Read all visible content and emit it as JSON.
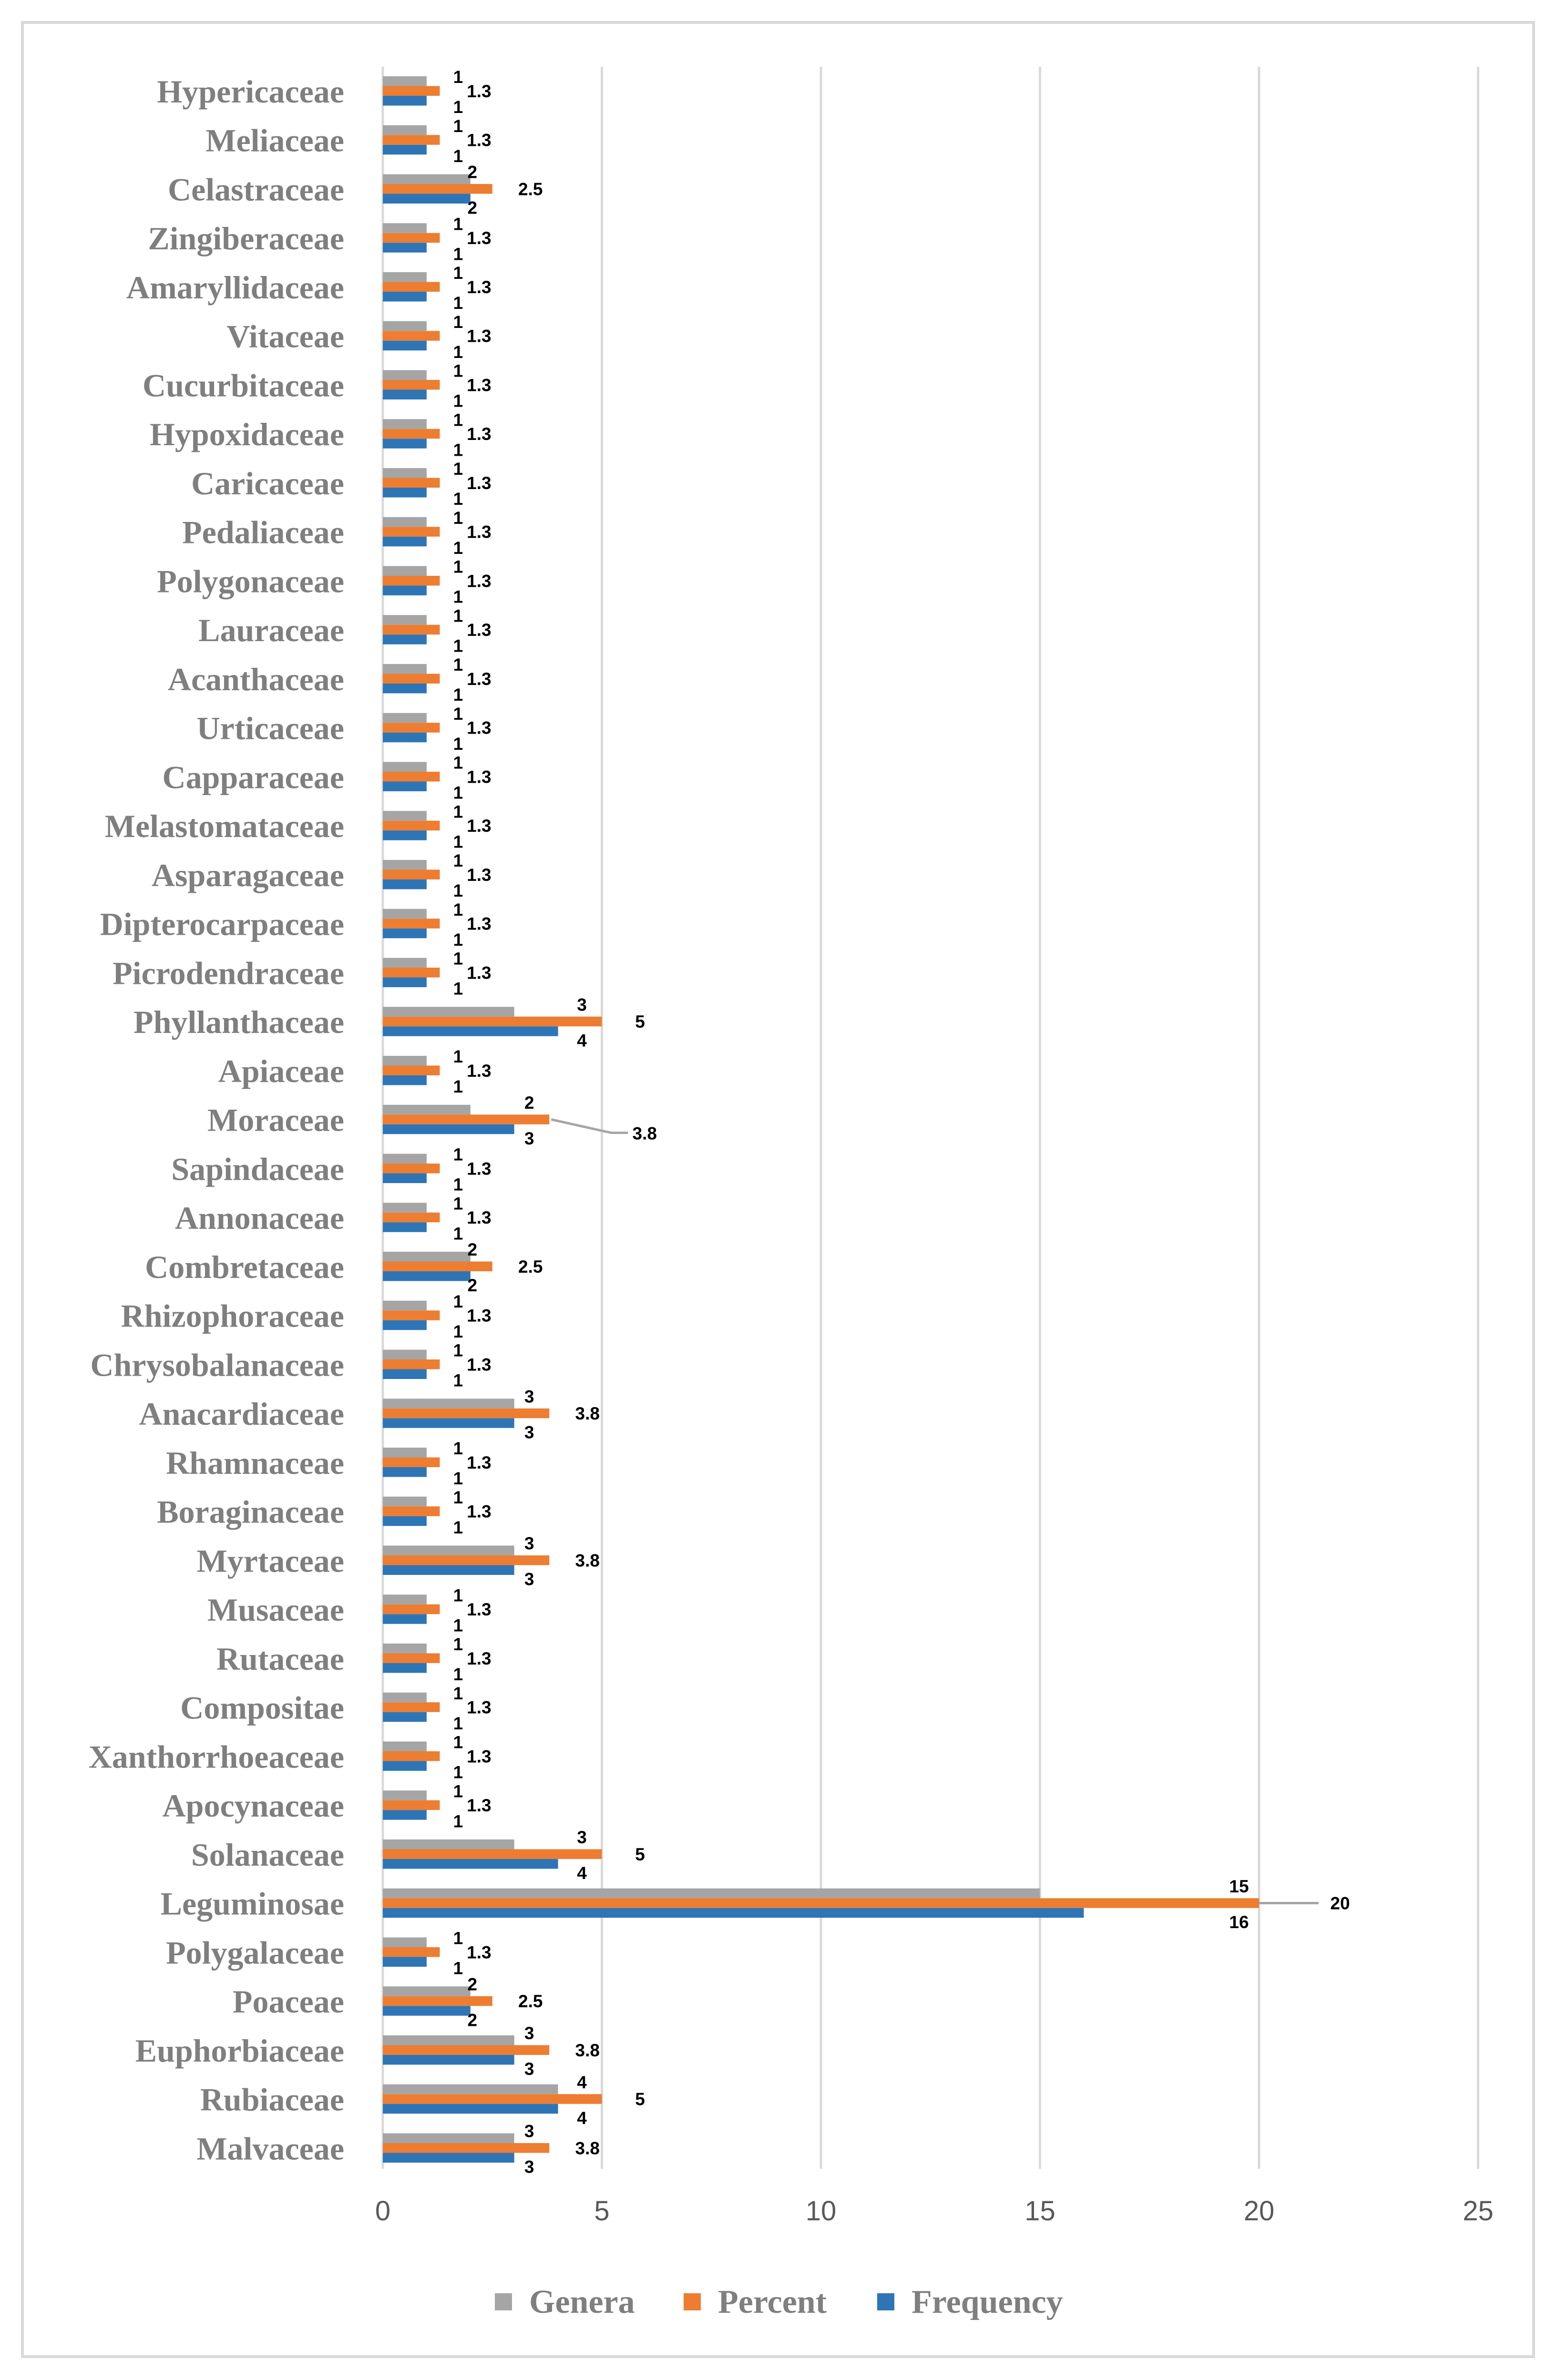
{
  "chart_data": {
    "type": "bar",
    "orientation": "horizontal",
    "title": "",
    "xlabel": "",
    "ylabel": "",
    "xlim": [
      0,
      25
    ],
    "xticks": [
      0,
      5,
      10,
      15,
      20,
      25
    ],
    "grid": "vertical",
    "legend_position": "bottom",
    "categories": [
      "Malvaceae",
      "Rubiaceae",
      "Euphorbiaceae",
      "Poaceae",
      "Polygalaceae",
      "Leguminosae",
      "Solanaceae",
      "Apocynaceae",
      "Xanthorrhoeaceae",
      "Compositae",
      "Rutaceae",
      "Musaceae",
      "Myrtaceae",
      "Boraginaceae",
      "Rhamnaceae",
      "Anacardiaceae",
      "Chrysobalanaceae",
      "Rhizophoraceae",
      "Combretaceae",
      "Annonaceae",
      "Sapindaceae",
      "Moraceae",
      "Apiaceae",
      "Phyllanthaceae",
      "Picrodendraceae",
      "Dipterocarpaceae",
      "Asparagaceae",
      "Melastomataceae",
      "Capparaceae",
      "Urticaceae",
      "Acanthaceae",
      "Lauraceae",
      "Polygonaceae",
      "Pedaliaceae",
      "Caricaceae",
      "Hypoxidaceae",
      "Cucurbitaceae",
      "Vitaceae",
      "Amaryllidaceae",
      "Zingiberaceae",
      "Celastraceae",
      "Meliaceae",
      "Hypericaceae"
    ],
    "series": [
      {
        "name": "Genera",
        "color": "#a5a5a5",
        "values": [
          3,
          4,
          3,
          2,
          1,
          15,
          3,
          1,
          1,
          1,
          1,
          1,
          3,
          1,
          1,
          3,
          1,
          1,
          2,
          1,
          1,
          2,
          1,
          3,
          1,
          1,
          1,
          1,
          1,
          1,
          1,
          1,
          1,
          1,
          1,
          1,
          1,
          1,
          1,
          1,
          2,
          1,
          1
        ],
        "labels": [
          "3",
          "4",
          "3",
          "2",
          "1",
          "15",
          "3",
          "1",
          "1",
          "1",
          "1",
          "1",
          "3",
          "1",
          "1",
          "3",
          "1",
          "1",
          "2",
          "1",
          "1",
          "2",
          "1",
          "3",
          "1",
          "1",
          "1",
          "1",
          "1",
          "1",
          "1",
          "1",
          "1",
          "1",
          "1",
          "1",
          "1",
          "1",
          "1",
          "1",
          "2",
          "1",
          "1"
        ]
      },
      {
        "name": "Percent",
        "color": "#ed7d31",
        "values": [
          3.8,
          5,
          3.8,
          2.5,
          1.3,
          20,
          5,
          1.3,
          1.3,
          1.3,
          1.3,
          1.3,
          3.8,
          1.3,
          1.3,
          3.8,
          1.3,
          1.3,
          2.5,
          1.3,
          1.3,
          3.8,
          1.3,
          5,
          1.3,
          1.3,
          1.3,
          1.3,
          1.3,
          1.3,
          1.3,
          1.3,
          1.3,
          1.3,
          1.3,
          1.3,
          1.3,
          1.3,
          1.3,
          1.3,
          2.5,
          1.3,
          1.3
        ],
        "labels": [
          "3.8",
          "5",
          "3.8",
          "2.5",
          "1.3",
          "20",
          "5",
          "1.3",
          "1.3",
          "1.3",
          "1.3",
          "1.3",
          "3.8",
          "1.3",
          "1.3",
          "3.8",
          "1.3",
          "1.3",
          "2.5",
          "1.3",
          "1.3",
          "3.8",
          "1.3",
          "5",
          "1.3",
          "1.3",
          "1.3",
          "1.3",
          "1.3",
          "1.3",
          "1.3",
          "1.3",
          "1.3",
          "1.3",
          "1.3",
          "1.3",
          "1.3",
          "1.3",
          "1.3",
          "1.3",
          "2.5",
          "1.3",
          "1.3"
        ]
      },
      {
        "name": "Frequency",
        "color": "#2e75b6",
        "values": [
          3,
          4,
          3,
          2,
          1,
          16,
          4,
          1,
          1,
          1,
          1,
          1,
          3,
          1,
          1,
          3,
          1,
          1,
          2,
          1,
          1,
          3,
          1,
          4,
          1,
          1,
          1,
          1,
          1,
          1,
          1,
          1,
          1,
          1,
          1,
          1,
          1,
          1,
          1,
          1,
          2,
          1,
          1
        ],
        "labels": [
          "3",
          "4",
          "3",
          "2",
          "1",
          "16",
          "4",
          "1",
          "1",
          "1",
          "1",
          "1",
          "3",
          "1",
          "1",
          "3",
          "1",
          "1",
          "2",
          "1",
          "1",
          "3",
          "1",
          "4",
          "1",
          "1",
          "1",
          "1",
          "1",
          "1",
          "1",
          "1",
          "1",
          "1",
          "1",
          "1",
          "1",
          "1",
          "1",
          "1",
          "2",
          "1",
          "1"
        ]
      }
    ],
    "legend": [
      "Genera",
      "Percent",
      "Frequency"
    ]
  },
  "colors": {
    "genera": "#a5a5a5",
    "percent": "#ed7d31",
    "frequency": "#2e75b6",
    "gridline": "#d9d9d9",
    "category_text": "#7f7f7f",
    "leader_line": "#a5a5a5"
  }
}
